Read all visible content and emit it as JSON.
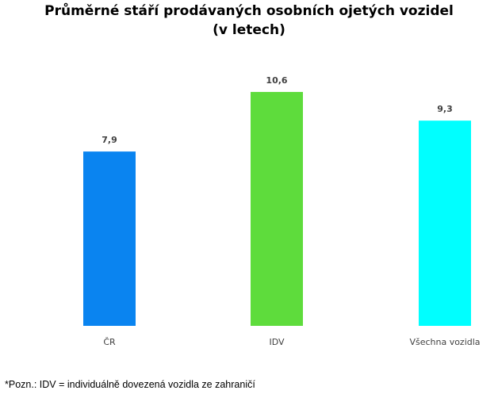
{
  "chart_data": {
    "type": "bar",
    "title_line1": "Průměrné stáří prodávaných osobních ojetých vozidel",
    "title_line2": "(v letech)",
    "categories": [
      "ČR",
      "IDV",
      "Všechna vozidla"
    ],
    "values": [
      7.9,
      10.6,
      9.3
    ],
    "value_labels": [
      "7,9",
      "10,6",
      "9,3"
    ],
    "colors": [
      "#0A84F0",
      "#5EDC3C",
      "#00FFFF"
    ],
    "xlabel": "",
    "ylabel": "",
    "ylim": [
      0,
      12
    ],
    "grid": false,
    "legend": "none"
  },
  "note": "*Pozn.: IDV = individuálně dovezená vozidla ze zahraničí"
}
